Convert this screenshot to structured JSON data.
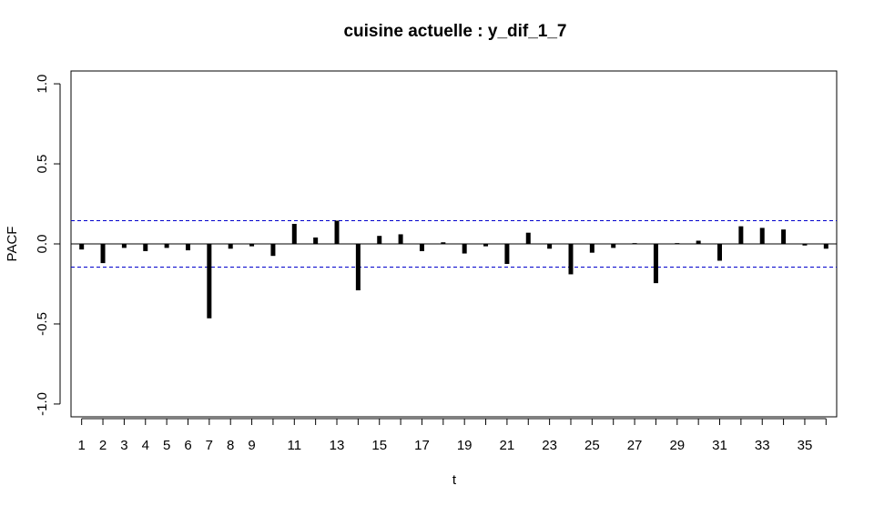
{
  "chart_data": {
    "type": "bar",
    "title": "cuisine actuelle : y_dif_1_7",
    "xlabel": "t",
    "ylabel": "PACF",
    "xlim": [
      0.5,
      36.5
    ],
    "ylim": [
      -1.08,
      1.08
    ],
    "yticks": [
      -1.0,
      -0.5,
      0.0,
      0.5,
      1.0
    ],
    "ytick_labels": [
      "-1.0",
      "-0.5",
      "0.0",
      "0.5",
      "1.0"
    ],
    "xticks": [
      1,
      2,
      3,
      4,
      5,
      6,
      7,
      8,
      9,
      10,
      11,
      12,
      13,
      14,
      15,
      16,
      17,
      18,
      19,
      20,
      21,
      22,
      23,
      24,
      25,
      26,
      27,
      28,
      29,
      30,
      31,
      32,
      33,
      34,
      35,
      36
    ],
    "xtick_labels": [
      "1",
      "2",
      "3",
      "4",
      "5",
      "6",
      "7",
      "8",
      "9",
      "",
      "11",
      "",
      "13",
      "",
      "15",
      "",
      "17",
      "",
      "19",
      "",
      "21",
      "",
      "23",
      "",
      "25",
      "",
      "27",
      "",
      "29",
      "",
      "31",
      "",
      "33",
      "",
      "35",
      ""
    ],
    "lags": [
      1,
      2,
      3,
      4,
      5,
      6,
      7,
      8,
      9,
      10,
      11,
      12,
      13,
      14,
      15,
      16,
      17,
      18,
      19,
      20,
      21,
      22,
      23,
      24,
      25,
      26,
      27,
      28,
      29,
      30,
      31,
      32,
      33,
      34,
      35,
      36
    ],
    "values": [
      -0.035,
      -0.12,
      -0.025,
      -0.045,
      -0.025,
      -0.04,
      -0.465,
      -0.03,
      -0.015,
      -0.075,
      0.125,
      0.04,
      0.145,
      -0.29,
      0.05,
      0.06,
      -0.045,
      0.01,
      -0.06,
      -0.015,
      -0.125,
      0.07,
      -0.03,
      -0.19,
      -0.055,
      -0.025,
      0.005,
      -0.245,
      0.005,
      0.02,
      -0.105,
      0.11,
      0.1,
      0.09,
      -0.01,
      -0.03
    ],
    "conf_limits": [
      0.145,
      -0.145
    ],
    "colors": {
      "bars": "#000000",
      "conf_lines": "#0000cc",
      "zero_line": "#000000"
    },
    "grid": false
  }
}
